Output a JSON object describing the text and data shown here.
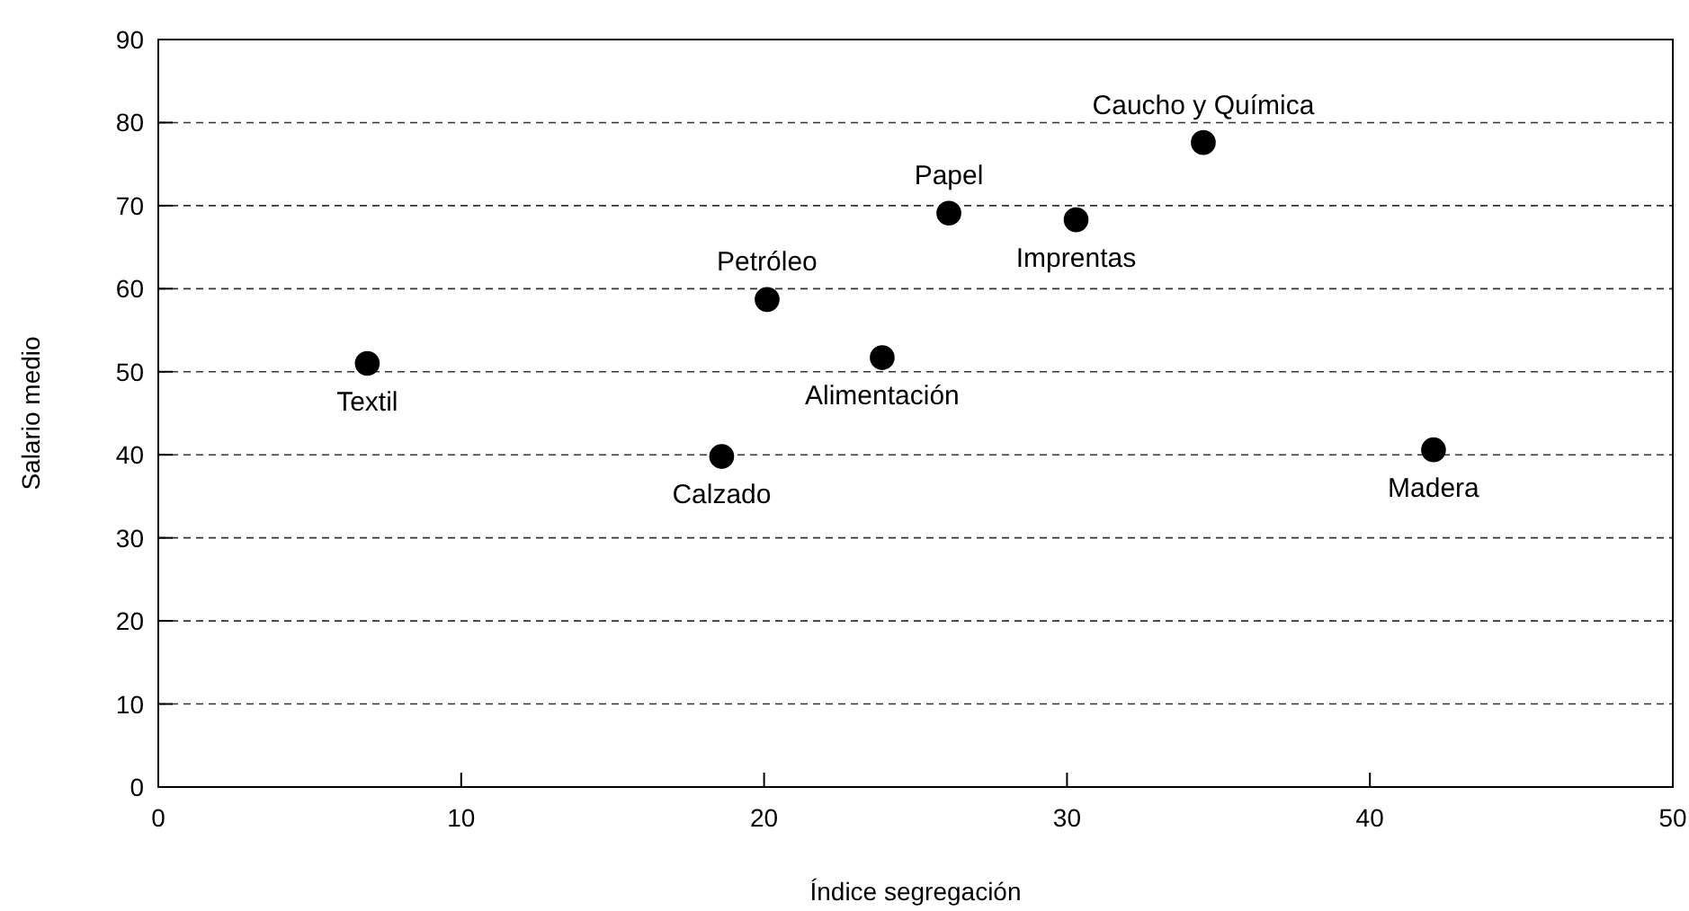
{
  "chart_data": {
    "type": "scatter",
    "xlabel": "Índice segregación",
    "ylabel": "Salario medio",
    "x": [
      6.9,
      18.6,
      20.1,
      23.9,
      26.1,
      30.3,
      34.5,
      42.1
    ],
    "series": [
      {
        "color": "#000000",
        "values": [
          51.0,
          39.8,
          58.7,
          51.7,
          69.1,
          68.3,
          77.6,
          40.6
        ]
      }
    ],
    "annotations": [
      {
        "text": "Textil",
        "x": 6.9,
        "y": 51.0
      },
      {
        "text": "Calzado",
        "x": 18.6,
        "y": 39.8
      },
      {
        "text": "Petróleo",
        "x": 20.1,
        "y": 58.7
      },
      {
        "text": "Alimentación",
        "x": 23.9,
        "y": 51.7
      },
      {
        "text": "Papel",
        "x": 26.1,
        "y": 69.1
      },
      {
        "text": "Imprentas",
        "x": 30.3,
        "y": 68.3
      },
      {
        "text": "Caucho y Química",
        "x": 34.5,
        "y": 77.6
      },
      {
        "text": "Madera",
        "x": 42.1,
        "y": 40.6
      }
    ],
    "xlim": [
      0,
      50
    ],
    "xticks": [
      0,
      10,
      20,
      30,
      40,
      50
    ],
    "ylim": [
      0,
      90
    ],
    "yticks": [
      0,
      10,
      20,
      30,
      40,
      50,
      60,
      70,
      80,
      90
    ],
    "grid": "y",
    "marker": "circle"
  }
}
